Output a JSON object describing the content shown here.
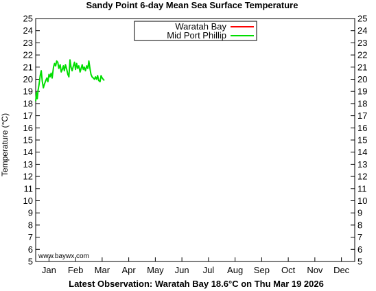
{
  "chart_data": {
    "type": "line",
    "title": "Sandy Point 6-day Mean Sea Surface Temperature",
    "ylabel": "Temperature (°C)",
    "xlabel": "Latest Observation: Waratah Bay 18.6°C on Thu Mar 19 2026",
    "watermark": "www.baywx.com",
    "ylim": [
      5,
      25
    ],
    "yticks": [
      5,
      6,
      7,
      8,
      9,
      10,
      11,
      12,
      13,
      14,
      15,
      16,
      17,
      18,
      19,
      20,
      21,
      22,
      23,
      24,
      25
    ],
    "xlim": [
      0,
      12
    ],
    "xtick_labels": [
      "Jan",
      "Feb",
      "Mar",
      "Apr",
      "May",
      "Jun",
      "Jul",
      "Aug",
      "Sep",
      "Oct",
      "Nov",
      "Dec"
    ],
    "grid": false,
    "legend_position": "top-center",
    "series": [
      {
        "name": "Waratah Bay",
        "color": "#ff0000",
        "x": [],
        "y": []
      },
      {
        "name": "Mid Port Phillip",
        "color": "#00dd00",
        "x": [
          0.0,
          0.03,
          0.06,
          0.09,
          0.13,
          0.17,
          0.21,
          0.25,
          0.29,
          0.33,
          0.38,
          0.42,
          0.46,
          0.5,
          0.54,
          0.58,
          0.62,
          0.67,
          0.71,
          0.75,
          0.79,
          0.83,
          0.87,
          0.92,
          0.96,
          1.0,
          1.04,
          1.08,
          1.12,
          1.17,
          1.21,
          1.25,
          1.29,
          1.33,
          1.37,
          1.42,
          1.46,
          1.5,
          1.54,
          1.58,
          1.62,
          1.67,
          1.71,
          1.75,
          1.79,
          1.83,
          1.87,
          1.92,
          1.96,
          2.0,
          2.04,
          2.08,
          2.12,
          2.17,
          2.21,
          2.25,
          2.29,
          2.33,
          2.37,
          2.42,
          2.46,
          2.5,
          2.54,
          2.58
        ],
        "y": [
          18.2,
          18.9,
          18.4,
          19.1,
          19.6,
          20.3,
          20.7,
          19.8,
          19.3,
          19.6,
          19.9,
          20.1,
          19.8,
          20.4,
          20.2,
          20.5,
          20.1,
          21.0,
          21.3,
          21.1,
          21.5,
          21.4,
          20.9,
          21.2,
          20.6,
          20.8,
          21.1,
          20.7,
          21.2,
          20.8,
          20.4,
          20.2,
          21.6,
          21.0,
          20.7,
          21.1,
          21.4,
          20.8,
          21.3,
          20.9,
          21.1,
          20.6,
          20.9,
          21.2,
          20.8,
          21.0,
          20.7,
          21.1,
          20.9,
          21.5,
          20.9,
          20.4,
          20.2,
          20.1,
          20.0,
          20.2,
          20.0,
          20.3,
          19.9,
          19.8,
          20.3,
          20.1,
          20.0,
          19.9
        ]
      }
    ]
  }
}
